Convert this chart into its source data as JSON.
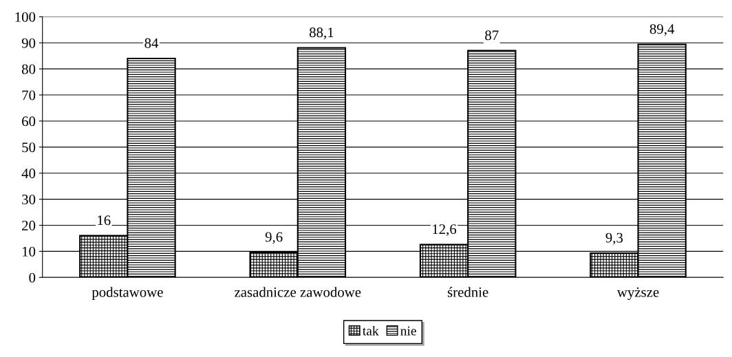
{
  "chart_data": {
    "type": "bar",
    "categories": [
      "podstawowe",
      "zasadnicze zawodowe",
      "średnie",
      "wyższe"
    ],
    "series": [
      {
        "name": "tak",
        "color": "#000000",
        "values": [
          16,
          9.6,
          12.6,
          9.3
        ],
        "value_labels": [
          "16",
          "9,6",
          "12,6",
          "9,3"
        ]
      },
      {
        "name": "nie",
        "color": "#000000",
        "values": [
          84,
          88.1,
          87,
          89.4
        ],
        "value_labels": [
          "84",
          "88,1",
          "87",
          "89,4"
        ]
      }
    ],
    "ylim": [
      0,
      100
    ],
    "yticks": [
      0,
      10,
      20,
      30,
      40,
      50,
      60,
      70,
      80,
      90,
      100
    ],
    "grid": "y",
    "legend": "bottom"
  }
}
